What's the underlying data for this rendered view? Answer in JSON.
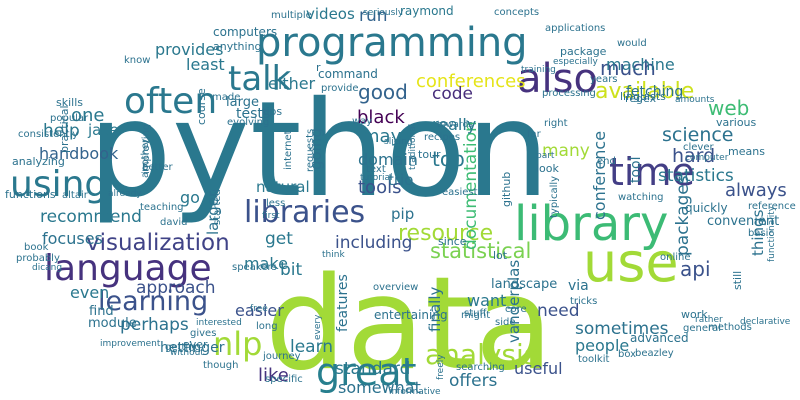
{
  "words": [
    {
      "text": "python",
      "color": "#2a788e"
    },
    {
      "text": "data",
      "color": "#a2da37"
    },
    {
      "text": "library",
      "color": "#3cbb75"
    },
    {
      "text": "use",
      "color": "#a2da37"
    },
    {
      "text": "programming",
      "color": "#2a788e"
    },
    {
      "text": "language",
      "color": "#46327e"
    },
    {
      "text": "using",
      "color": "#2a788e"
    },
    {
      "text": "great",
      "color": "#277f8e"
    },
    {
      "text": "time",
      "color": "#433e85"
    },
    {
      "text": "also",
      "color": "#46327e"
    },
    {
      "text": "often",
      "color": "#2a788e"
    },
    {
      "text": "talk",
      "color": "#2a788e"
    },
    {
      "text": "libraries",
      "color": "#3b528b"
    },
    {
      "text": "learning",
      "color": "#3b528b"
    },
    {
      "text": "analysis",
      "color": "#a2da37"
    },
    {
      "text": "nlp",
      "color": "#a2da37"
    },
    {
      "text": "visualization",
      "color": "#404387"
    },
    {
      "text": "resource",
      "color": "#a2da37"
    },
    {
      "text": "statistical",
      "color": "#7ad151"
    },
    {
      "text": "documentation",
      "color": "#3dbc74"
    },
    {
      "text": "available",
      "color": "#cde11d"
    },
    {
      "text": "web",
      "color": "#3dbc74"
    },
    {
      "text": "science",
      "color": "#2c728e"
    },
    {
      "text": "good",
      "color": "#33638d"
    },
    {
      "text": "much",
      "color": "#3b528b"
    },
    {
      "text": "hard",
      "color": "#3b528b"
    },
    {
      "text": "conferences",
      "color": "#e5e419"
    },
    {
      "text": "code",
      "color": "#472d7b"
    },
    {
      "text": "black",
      "color": "#440154"
    },
    {
      "text": "many",
      "color": "#a2da37"
    },
    {
      "text": "top",
      "color": "#2a788e"
    },
    {
      "text": "tools",
      "color": "#3b528b"
    },
    {
      "text": "may",
      "color": "#2a788e"
    },
    {
      "text": "handbook",
      "color": "#33638d"
    },
    {
      "text": "recommend",
      "color": "#2a788e"
    },
    {
      "text": "api",
      "color": "#3b528b"
    },
    {
      "text": "always",
      "color": "#3b528b"
    },
    {
      "text": "statistics",
      "color": "#2a788e"
    },
    {
      "text": "including",
      "color": "#3b528b"
    },
    {
      "text": "perhaps",
      "color": "#2c728e"
    },
    {
      "text": "standard",
      "color": "#2a788e"
    },
    {
      "text": "sometimes",
      "color": "#2c728e"
    },
    {
      "text": "offers",
      "color": "#2c728e"
    },
    {
      "text": "people",
      "color": "#2a788e"
    },
    {
      "text": "need",
      "color": "#3b528b"
    },
    {
      "text": "useful",
      "color": "#3b528b"
    },
    {
      "text": "somewhat",
      "color": "#2c728e"
    },
    {
      "text": "like",
      "color": "#46327e"
    },
    {
      "text": "learn",
      "color": "#2a788e"
    },
    {
      "text": "get",
      "color": "#2a788e"
    },
    {
      "text": "make",
      "color": "#2a788e"
    },
    {
      "text": "bit",
      "color": "#2a788e"
    },
    {
      "text": "easier",
      "color": "#3b528b"
    },
    {
      "text": "approach",
      "color": "#3b528b"
    },
    {
      "text": "natural",
      "color": "#2a788e"
    },
    {
      "text": "provides",
      "color": "#2a788e"
    },
    {
      "text": "least",
      "color": "#2a788e"
    },
    {
      "text": "either",
      "color": "#2a788e"
    },
    {
      "text": "videos",
      "color": "#2a788e"
    },
    {
      "text": "run",
      "color": "#33638d"
    },
    {
      "text": "raymond",
      "color": "#2a788e"
    },
    {
      "text": "machine",
      "color": "#2a788e"
    },
    {
      "text": "domain",
      "color": "#2c728e"
    },
    {
      "text": "really",
      "color": "#2a788e"
    },
    {
      "text": "help",
      "color": "#2a788e"
    },
    {
      "text": "one",
      "color": "#2a788e"
    },
    {
      "text": "jake",
      "color": "#2a788e"
    },
    {
      "text": "focuses",
      "color": "#2c728e"
    },
    {
      "text": "even",
      "color": "#2a788e"
    },
    {
      "text": "larger",
      "color": "#2c728e"
    },
    {
      "text": "go",
      "color": "#2a788e"
    },
    {
      "text": "finally",
      "color": "#2c728e"
    },
    {
      "text": "want",
      "color": "#2a788e"
    },
    {
      "text": "vanderplas",
      "color": "#2c728e"
    },
    {
      "text": "features",
      "color": "#2c728e"
    },
    {
      "text": "landscape",
      "color": "#2c728e"
    },
    {
      "text": "via",
      "color": "#2c728e"
    },
    {
      "text": "conference",
      "color": "#2c728e"
    },
    {
      "text": "packages",
      "color": "#2c728e"
    },
    {
      "text": "things",
      "color": "#2c728e"
    },
    {
      "text": "going",
      "color": "#2c728e"
    },
    {
      "text": "tool",
      "color": "#2c728e"
    },
    {
      "text": "hettinger",
      "color": "#2c728e"
    },
    {
      "text": "module",
      "color": "#2c728e"
    },
    {
      "text": "find",
      "color": "#2c728e"
    },
    {
      "text": "entertaining",
      "color": "#2c728e"
    },
    {
      "text": "advanced",
      "color": "#2c728e"
    },
    {
      "text": "convenient",
      "color": "#2c728e"
    },
    {
      "text": "quickly",
      "color": "#2c728e"
    },
    {
      "text": "work",
      "color": "#2c728e"
    },
    {
      "text": "general",
      "color": "#2c728e"
    },
    {
      "text": "trio",
      "color": "#2c728e"
    },
    {
      "text": "pip",
      "color": "#2c728e"
    },
    {
      "text": "tests",
      "color": "#2c728e"
    },
    {
      "text": "large",
      "color": "#2c728e"
    },
    {
      "text": "tips",
      "color": "#2c728e"
    },
    {
      "text": "computers",
      "color": "#2c728e"
    },
    {
      "text": "anything",
      "color": "#2c728e"
    },
    {
      "text": "multiple",
      "color": "#2c728e"
    },
    {
      "text": "seriously",
      "color": "#2c728e"
    },
    {
      "text": "concepts",
      "color": "#2c728e"
    },
    {
      "text": "applications",
      "color": "#2c728e"
    },
    {
      "text": "package",
      "color": "#2c728e"
    },
    {
      "text": "especially",
      "color": "#2c728e"
    },
    {
      "text": "regex",
      "color": "#2c728e"
    },
    {
      "text": "linguists",
      "color": "#2c728e"
    },
    {
      "text": "processing",
      "color": "#2c728e"
    },
    {
      "text": "fetching",
      "color": "#2c728e"
    },
    {
      "text": "command",
      "color": "#2c728e"
    },
    {
      "text": "provide",
      "color": "#2c728e"
    },
    {
      "text": "training",
      "color": "#2c728e"
    },
    {
      "text": "years",
      "color": "#2c728e"
    },
    {
      "text": "would",
      "color": "#2c728e"
    },
    {
      "text": "amounts",
      "color": "#2c728e"
    },
    {
      "text": "various",
      "color": "#2c728e"
    },
    {
      "text": "clever",
      "color": "#2c728e"
    },
    {
      "text": "computer",
      "color": "#2c728e"
    },
    {
      "text": "means",
      "color": "#2c728e"
    },
    {
      "text": "reference",
      "color": "#2c728e"
    },
    {
      "text": "skills",
      "color": "#2c728e"
    },
    {
      "text": "popular",
      "color": "#2c728e"
    },
    {
      "text": "consistently",
      "color": "#2c728e"
    },
    {
      "text": "analyzing",
      "color": "#2c728e"
    },
    {
      "text": "practical",
      "color": "#2c728e"
    },
    {
      "text": "functions",
      "color": "#2c728e"
    },
    {
      "text": "altair",
      "color": "#2c728e"
    },
    {
      "text": "book",
      "color": "#2c728e"
    },
    {
      "text": "probably",
      "color": "#2c728e"
    },
    {
      "text": "dicang",
      "color": "#2c728e"
    },
    {
      "text": "know",
      "color": "#2c728e"
    },
    {
      "text": "made",
      "color": "#2c728e"
    },
    {
      "text": "course",
      "color": "#2c728e"
    },
    {
      "text": "evolving",
      "color": "#2c728e"
    },
    {
      "text": "improving",
      "color": "#2c728e"
    },
    {
      "text": "another",
      "color": "#2c728e"
    },
    {
      "text": "better",
      "color": "#2c728e"
    },
    {
      "text": "teaching",
      "color": "#2c728e"
    },
    {
      "text": "david",
      "color": "#2c728e"
    },
    {
      "text": "already",
      "color": "#2c728e"
    },
    {
      "text": "started",
      "color": "#2c728e"
    },
    {
      "text": "internet",
      "color": "#2c728e"
    },
    {
      "text": "requests",
      "color": "#2c728e"
    },
    {
      "text": "less",
      "color": "#2c728e"
    },
    {
      "text": "first",
      "color": "#2c728e"
    },
    {
      "text": "text",
      "color": "#2c728e"
    },
    {
      "text": "slicing",
      "color": "#2c728e"
    },
    {
      "text": "tutorial",
      "color": "#2c728e"
    },
    {
      "text": "way",
      "color": "#2c728e"
    },
    {
      "text": "traditional",
      "color": "#2c728e"
    },
    {
      "text": "recipes",
      "color": "#2c728e"
    },
    {
      "text": "towards",
      "color": "#2c728e"
    },
    {
      "text": "easiest",
      "color": "#2c728e"
    },
    {
      "text": "right",
      "color": "#2c728e"
    },
    {
      "text": "far",
      "color": "#2c728e"
    },
    {
      "text": "part",
      "color": "#2c728e"
    },
    {
      "text": "look",
      "color": "#2c728e"
    },
    {
      "text": "typically",
      "color": "#2c728e"
    },
    {
      "text": "watching",
      "color": "#2c728e"
    },
    {
      "text": "end",
      "color": "#2c728e"
    },
    {
      "text": "github",
      "color": "#2c728e"
    },
    {
      "text": "since",
      "color": "#2c728e"
    },
    {
      "text": "lot",
      "color": "#2c728e"
    },
    {
      "text": "basic",
      "color": "#2c728e"
    },
    {
      "text": "functionality",
      "color": "#2c728e"
    },
    {
      "text": "still",
      "color": "#2c728e"
    },
    {
      "text": "methods",
      "color": "#2c728e"
    },
    {
      "text": "declarative",
      "color": "#2c728e"
    },
    {
      "text": "online",
      "color": "#2c728e"
    },
    {
      "text": "rather",
      "color": "#2c728e"
    },
    {
      "text": "beazley",
      "color": "#2c728e"
    },
    {
      "text": "box",
      "color": "#2c728e"
    },
    {
      "text": "toolkit",
      "color": "#2c728e"
    },
    {
      "text": "tricks",
      "color": "#2c728e"
    },
    {
      "text": "core",
      "color": "#2c728e"
    },
    {
      "text": "stuff",
      "color": "#2c728e"
    },
    {
      "text": "side",
      "color": "#2c728e"
    },
    {
      "text": "searching",
      "color": "#2c728e"
    },
    {
      "text": "freely",
      "color": "#2c728e"
    },
    {
      "text": "informative",
      "color": "#2c728e"
    },
    {
      "text": "might",
      "color": "#2c728e"
    },
    {
      "text": "overview",
      "color": "#2c728e"
    },
    {
      "text": "every",
      "color": "#2c728e"
    },
    {
      "text": "think",
      "color": "#2c728e"
    },
    {
      "text": "speakers",
      "color": "#2c728e"
    },
    {
      "text": "journey",
      "color": "#2c728e"
    },
    {
      "text": "specific",
      "color": "#2c728e"
    },
    {
      "text": "though",
      "color": "#2c728e"
    },
    {
      "text": "gives",
      "color": "#2c728e"
    },
    {
      "text": "interested",
      "color": "#2c728e"
    },
    {
      "text": "ever",
      "color": "#2c728e"
    },
    {
      "text": "getting",
      "color": "#2c728e"
    },
    {
      "text": "without",
      "color": "#2c728e"
    },
    {
      "text": "long",
      "color": "#2c728e"
    },
    {
      "text": "free",
      "color": "#2c728e"
    },
    {
      "text": "improvement",
      "color": "#2c728e"
    },
    {
      "text": "r",
      "color": "#2c728e"
    },
    {
      "text": "tour",
      "color": "#2c728e"
    }
  ]
}
